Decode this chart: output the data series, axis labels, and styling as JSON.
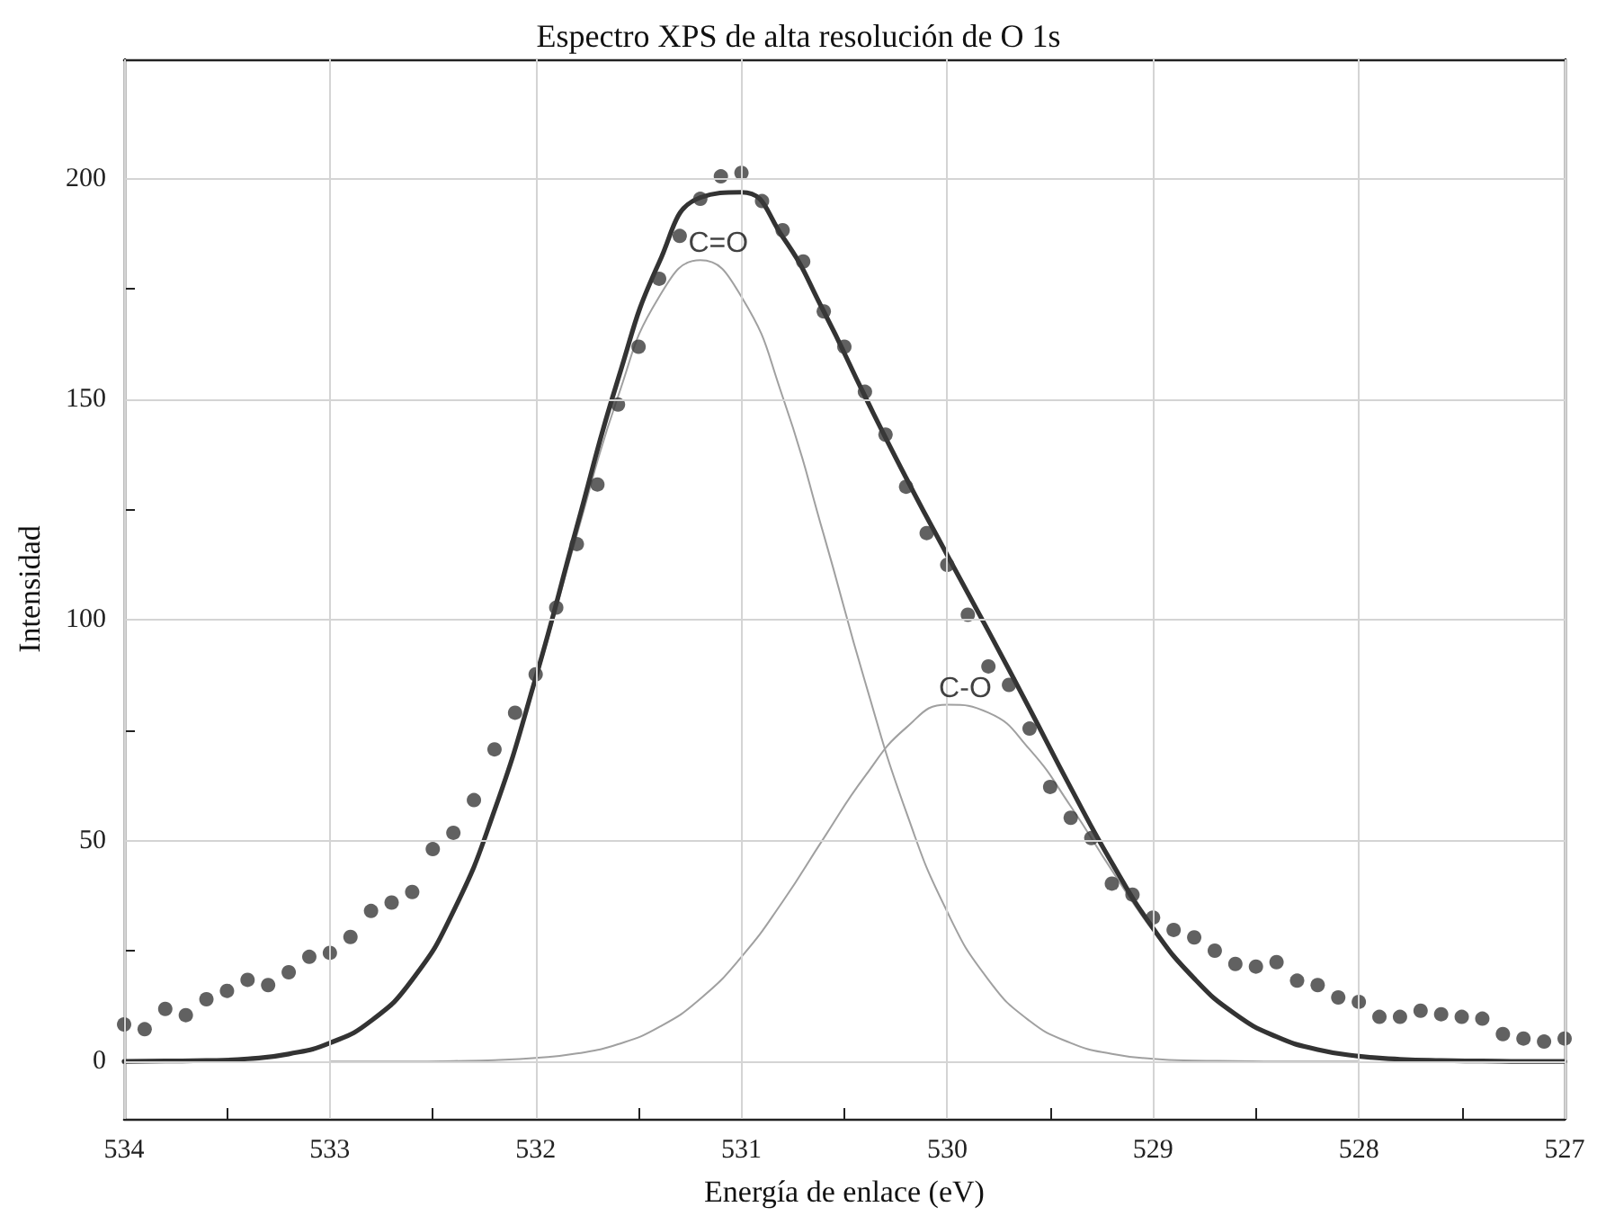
{
  "chart_data": {
    "type": "scatter",
    "title": "Espectro XPS de alta resolución de O 1s",
    "xlabel": "Energía de enlace (eV)",
    "ylabel": "Intensidad",
    "xlim": [
      534,
      527
    ],
    "ylim": [
      -13,
      227
    ],
    "xticks": [
      534,
      {
        "value": 533.5,
        "label": null
      },
      533,
      {
        "value": 532.5,
        "label": null
      },
      532,
      {
        "value": 531.5,
        "label": null
      },
      531,
      {
        "value": 530.5,
        "label": null
      },
      530,
      {
        "value": 529.5,
        "label": null
      },
      529,
      {
        "value": 528.5,
        "label": null
      },
      528,
      {
        "value": 527.5,
        "label": null
      },
      527
    ],
    "yticks": [
      0,
      {
        "value": 25,
        "label": null
      },
      50,
      {
        "value": 75,
        "label": null
      },
      100,
      {
        "value": 125,
        "label": null
      },
      150,
      {
        "value": 175,
        "label": null
      },
      200
    ],
    "grid": true,
    "annotations": [
      {
        "text": "C=O",
        "x": 531.2,
        "y": 181.5
      },
      {
        "text": "C-O",
        "x": 530.0,
        "y": 80.8
      }
    ],
    "series": [
      {
        "color": "#3a3a3a",
        "marker": "circle",
        "x": [
          534.0,
          533.9,
          533.8,
          533.7,
          533.6,
          533.5,
          533.4,
          533.3,
          533.2,
          533.1,
          533.0,
          532.9,
          532.8,
          532.7,
          532.6,
          532.5,
          532.4,
          532.3,
          532.2,
          532.1,
          532.0,
          531.9,
          531.8,
          531.7,
          531.6,
          531.5,
          531.4,
          531.3,
          531.2,
          531.1,
          531.0,
          530.9,
          530.8,
          530.7,
          530.6,
          530.5,
          530.4,
          530.3,
          530.2,
          530.1,
          530.0,
          529.9,
          529.8,
          529.7,
          529.6,
          529.5,
          529.4,
          529.3,
          529.2,
          529.1,
          529.0,
          528.9,
          528.8,
          528.7,
          528.6,
          528.5,
          528.4,
          528.3,
          528.2,
          528.1,
          528.0,
          527.9,
          527.8,
          527.7,
          527.6,
          527.5,
          527.4,
          527.3,
          527.2,
          527.1,
          527.0
        ],
        "values": [
          8.4,
          7.3,
          11.9,
          10.5,
          14.1,
          16.0,
          18.5,
          17.3,
          20.2,
          23.7,
          24.6,
          28.2,
          34.1,
          36.0,
          38.4,
          48.1,
          51.8,
          59.2,
          70.7,
          79.0,
          87.7,
          102.8,
          117.2,
          130.7,
          148.8,
          161.9,
          177.3,
          187.0,
          195.4,
          200.5,
          201.3,
          194.9,
          188.3,
          181.2,
          169.9,
          161.9,
          151.7,
          142.0,
          130.2,
          119.7,
          112.5,
          101.2,
          89.5,
          85.3,
          75.4,
          62.2,
          55.2,
          50.6,
          40.3,
          37.8,
          32.6,
          29.8,
          28.1,
          25.1,
          22.1,
          21.5,
          22.5,
          18.3,
          17.3,
          14.5,
          13.5,
          10.1,
          10.1,
          11.5,
          10.7,
          10.1,
          9.7,
          6.2,
          5.2,
          4.5,
          5.2
        ]
      },
      {
        "type": "line",
        "color": "#a0a0a0",
        "marker": "none",
        "line_style": "solid",
        "x": [
          534.0,
          533.8,
          533.6,
          533.4,
          533.2,
          533.0,
          532.8,
          532.6,
          532.4,
          532.2,
          532.0,
          531.8,
          531.6,
          531.4,
          531.2,
          531.0,
          530.8,
          530.6,
          530.4,
          530.2,
          530.0,
          529.8,
          529.6,
          529.4,
          529.2,
          529.0,
          528.8,
          528.6,
          528.4,
          528.2,
          528.0
        ],
        "values": [
          0,
          0.1,
          0.2,
          0.6,
          1.7,
          4.2,
          9.2,
          18.5,
          33.9,
          56.6,
          86.1,
          119.3,
          150.6,
          173.2,
          181.5,
          173.2,
          150.6,
          119.3,
          86.1,
          56.6,
          33.9,
          18.5,
          9.2,
          4.2,
          1.7,
          0.6,
          0.2,
          0.1,
          0,
          0,
          0
        ]
      },
      {
        "type": "line",
        "color": "#a0a0a0",
        "marker": "none",
        "line_style": "solid",
        "x": [
          533.0,
          532.8,
          532.6,
          532.4,
          532.2,
          532.0,
          531.8,
          531.6,
          531.4,
          531.2,
          531.0,
          530.8,
          530.6,
          530.4,
          530.2,
          530.0,
          529.8,
          529.6,
          529.4,
          529.2,
          529.0,
          528.8,
          528.6,
          528.4,
          528.2,
          528.0,
          527.8,
          527.6,
          527.4,
          527.2,
          527.0
        ],
        "values": [
          0,
          0,
          0,
          0.1,
          0.3,
          0.8,
          1.8,
          3.9,
          7.8,
          14.2,
          23.7,
          36.2,
          50.6,
          64.6,
          75.6,
          80.8,
          79.0,
          70.7,
          57.8,
          43.3,
          29.6,
          18.6,
          10.6,
          5.6,
          2.7,
          1.2,
          0.5,
          0.2,
          0.1,
          0,
          0
        ]
      },
      {
        "type": "line",
        "color": "#333333",
        "marker": "none",
        "line_style": "solid",
        "x": [
          534.0,
          533.8,
          533.6,
          533.4,
          533.2,
          533.0,
          532.8,
          532.6,
          532.4,
          532.2,
          532.0,
          531.8,
          531.6,
          531.4,
          531.2,
          531.0,
          530.8,
          530.6,
          530.4,
          530.2,
          530.0,
          529.8,
          529.6,
          529.4,
          529.2,
          529.0,
          528.8,
          528.6,
          528.4,
          528.2,
          528.0,
          527.8,
          527.6,
          527.4,
          527.2,
          527.0
        ],
        "values": [
          0,
          0.1,
          0.2,
          0.6,
          1.7,
          4.2,
          9.2,
          18.5,
          34.0,
          56.9,
          86.9,
          121.1,
          154.5,
          181.0,
          195.7,
          196.9,
          186.8,
          169.9,
          150.7,
          132.2,
          114.7,
          97.5,
          79.9,
          62.0,
          45.0,
          30.2,
          18.8,
          10.7,
          5.6,
          2.7,
          1.2,
          0.5,
          0.2,
          0.1,
          0,
          0
        ]
      }
    ]
  }
}
